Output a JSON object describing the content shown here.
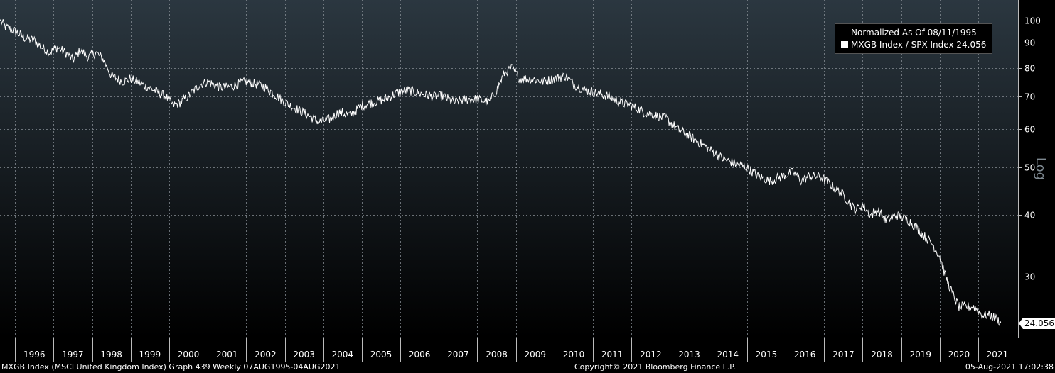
{
  "chart_data": {
    "type": "line",
    "series": [
      {
        "name": "MXGB Index / SPX Index",
        "points": [
          [
            1995.61,
            100
          ],
          [
            1995.75,
            97
          ],
          [
            1996.0,
            95
          ],
          [
            1996.25,
            92
          ],
          [
            1996.5,
            91
          ],
          [
            1996.7,
            88
          ],
          [
            1996.9,
            86
          ],
          [
            1997.1,
            88
          ],
          [
            1997.3,
            86
          ],
          [
            1997.5,
            83
          ],
          [
            1997.7,
            87
          ],
          [
            1997.9,
            84
          ],
          [
            1998.1,
            86
          ],
          [
            1998.3,
            83
          ],
          [
            1998.5,
            77
          ],
          [
            1998.8,
            75
          ],
          [
            1999.0,
            76
          ],
          [
            1999.3,
            74
          ],
          [
            1999.6,
            72
          ],
          [
            1999.9,
            70
          ],
          [
            2000.1,
            67
          ],
          [
            2000.3,
            68
          ],
          [
            2000.5,
            70
          ],
          [
            2000.8,
            74
          ],
          [
            2001.0,
            75
          ],
          [
            2001.3,
            73
          ],
          [
            2001.5,
            73
          ],
          [
            2001.8,
            74
          ],
          [
            2002.0,
            75
          ],
          [
            2002.3,
            74
          ],
          [
            2002.5,
            73
          ],
          [
            2002.8,
            70
          ],
          [
            2003.0,
            68
          ],
          [
            2003.3,
            66
          ],
          [
            2003.6,
            64
          ],
          [
            2003.9,
            62
          ],
          [
            2004.2,
            63
          ],
          [
            2004.4,
            65
          ],
          [
            2004.7,
            64
          ],
          [
            2005.0,
            67
          ],
          [
            2005.3,
            68
          ],
          [
            2005.6,
            69
          ],
          [
            2005.9,
            71
          ],
          [
            2006.2,
            72
          ],
          [
            2006.5,
            71
          ],
          [
            2006.8,
            70
          ],
          [
            2007.1,
            70
          ],
          [
            2007.4,
            68
          ],
          [
            2007.7,
            69
          ],
          [
            2008.0,
            69
          ],
          [
            2008.3,
            68
          ],
          [
            2008.5,
            72
          ],
          [
            2008.7,
            78
          ],
          [
            2008.9,
            80
          ],
          [
            2009.1,
            76
          ],
          [
            2009.4,
            76
          ],
          [
            2009.7,
            75
          ],
          [
            2010.0,
            76
          ],
          [
            2010.3,
            77
          ],
          [
            2010.5,
            74
          ],
          [
            2010.8,
            72
          ],
          [
            2011.1,
            71
          ],
          [
            2011.4,
            70
          ],
          [
            2011.7,
            68
          ],
          [
            2012.0,
            67
          ],
          [
            2012.3,
            65
          ],
          [
            2012.6,
            64
          ],
          [
            2012.9,
            63
          ],
          [
            2013.2,
            60
          ],
          [
            2013.5,
            58
          ],
          [
            2013.8,
            56
          ],
          [
            2014.1,
            54
          ],
          [
            2014.4,
            52
          ],
          [
            2014.7,
            51
          ],
          [
            2015.0,
            50
          ],
          [
            2015.3,
            48
          ],
          [
            2015.6,
            47
          ],
          [
            2015.9,
            48
          ],
          [
            2016.2,
            49
          ],
          [
            2016.4,
            47
          ],
          [
            2016.6,
            48
          ],
          [
            2016.9,
            48
          ],
          [
            2017.2,
            46
          ],
          [
            2017.5,
            44
          ],
          [
            2017.8,
            41
          ],
          [
            2018.0,
            42
          ],
          [
            2018.2,
            40
          ],
          [
            2018.4,
            41
          ],
          [
            2018.6,
            39
          ],
          [
            2018.9,
            40
          ],
          [
            2019.2,
            39
          ],
          [
            2019.5,
            37
          ],
          [
            2019.8,
            35
          ],
          [
            2020.0,
            33
          ],
          [
            2020.15,
            30
          ],
          [
            2020.3,
            28
          ],
          [
            2020.5,
            26
          ],
          [
            2020.7,
            26
          ],
          [
            2020.9,
            26
          ],
          [
            2021.1,
            25
          ],
          [
            2021.3,
            25
          ],
          [
            2021.5,
            24.5
          ],
          [
            2021.59,
            24.056
          ]
        ]
      }
    ],
    "x_ticks": [
      "1996",
      "1997",
      "1998",
      "1999",
      "2000",
      "2001",
      "2002",
      "2003",
      "2004",
      "2005",
      "2006",
      "2007",
      "2008",
      "2009",
      "2010",
      "2011",
      "2012",
      "2013",
      "2014",
      "2015",
      "2016",
      "2017",
      "2018",
      "2019",
      "2020",
      "2021"
    ],
    "xlim": [
      1995.61,
      2021.59
    ],
    "y_scale": "log",
    "y_ticks": [
      100,
      90,
      80,
      70,
      60,
      50,
      40,
      30
    ],
    "ylim": [
      22.5,
      110
    ],
    "ylabel": "Log",
    "last_value_label": "24.056",
    "legend": {
      "title": "Normalized As Of 08/11/1995",
      "entry": "MXGB Index / SPX Index 24.056",
      "placement": "top-right"
    },
    "grid": true,
    "colors": {
      "line": "#ffffff",
      "background_top": "#2b3740",
      "background_bottom": "#000000"
    }
  },
  "footer": {
    "left": "MXGB Index (MSCI United Kingdom Index) Graph 439  Weekly 07AUG1995-04AUG2021",
    "center": "Copyright© 2021 Bloomberg Finance L.P.",
    "right": "05-Aug-2021 17:02:38"
  }
}
